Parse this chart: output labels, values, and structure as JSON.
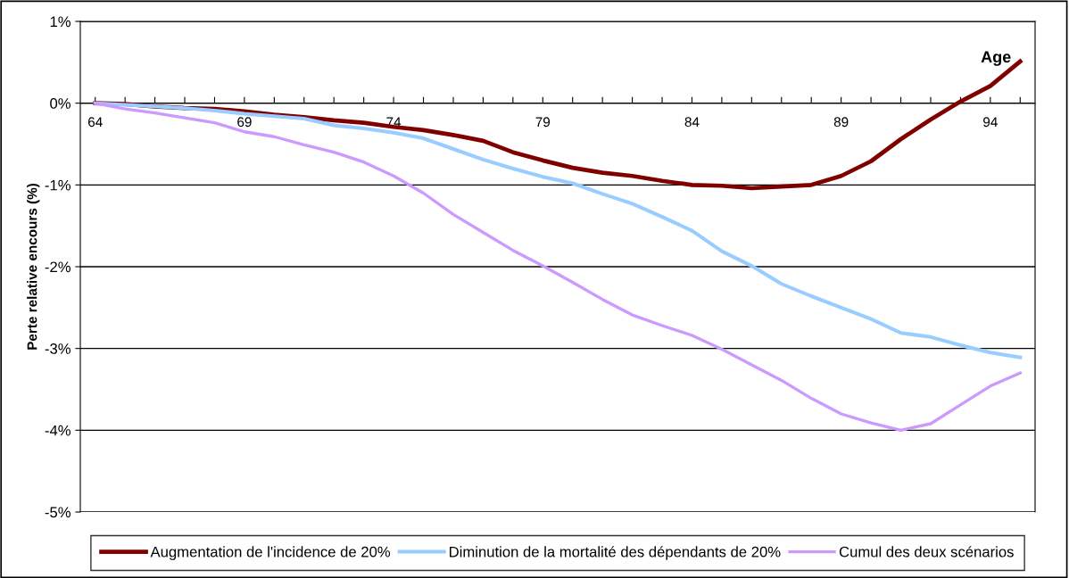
{
  "chart_data": {
    "type": "line",
    "xlabel": "Age",
    "ylabel": "Perte relative encours (%)",
    "categories": [
      "64",
      null,
      null,
      null,
      null,
      "69",
      null,
      null,
      null,
      null,
      "74",
      null,
      null,
      null,
      null,
      "79",
      null,
      null,
      null,
      null,
      "84",
      null,
      null,
      null,
      null,
      "89",
      null,
      null,
      null,
      null,
      "94",
      null
    ],
    "series": [
      {
        "name": "Augmentation de l'incidence de 20%",
        "color": "#800000",
        "values": [
          0,
          -0.01,
          -0.04,
          -0.06,
          -0.07,
          -0.1,
          -0.14,
          -0.17,
          -0.21,
          -0.24,
          -0.29,
          -0.33,
          -0.39,
          -0.46,
          -0.6,
          -0.7,
          -0.79,
          -0.85,
          -0.89,
          -0.95,
          -1.0,
          -1.01,
          -1.04,
          -1.02,
          -1.0,
          -0.89,
          -0.71,
          -0.44,
          -0.2,
          0.02,
          0.21,
          0.51
        ]
      },
      {
        "name": "Diminution de la mortalité des dépendants de 20%",
        "color": "#99ccff",
        "values": [
          0,
          -0.02,
          -0.04,
          -0.06,
          -0.09,
          -0.13,
          -0.16,
          -0.19,
          -0.27,
          -0.31,
          -0.36,
          -0.43,
          -0.56,
          -0.69,
          -0.8,
          -0.9,
          -0.98,
          -1.11,
          -1.23,
          -1.39,
          -1.56,
          -1.81,
          -1.99,
          -2.21,
          -2.36,
          -2.5,
          -2.64,
          -2.81,
          -2.86,
          -2.96,
          -3.05,
          -3.11
        ]
      },
      {
        "name": "Cumul des deux scénarios",
        "color": "#cc99ff",
        "values": [
          0,
          -0.07,
          -0.12,
          -0.18,
          -0.24,
          -0.35,
          -0.41,
          -0.51,
          -0.6,
          -0.72,
          -0.89,
          -1.1,
          -1.36,
          -1.58,
          -1.8,
          -1.99,
          -2.19,
          -2.4,
          -2.59,
          -2.72,
          -2.84,
          -3.01,
          -3.2,
          -3.39,
          -3.61,
          -3.8,
          -3.91,
          -4.0,
          -3.92,
          -3.69,
          -3.46,
          -3.3
        ]
      }
    ],
    "ylim": [
      -5,
      1
    ],
    "yticks": [
      {
        "value": -5,
        "label": "-5%"
      },
      {
        "value": -4,
        "label": "-4%"
      },
      {
        "value": -3,
        "label": "-3%"
      },
      {
        "value": -2,
        "label": "-2%"
      },
      {
        "value": -1,
        "label": "-1%"
      },
      {
        "value": 0,
        "label": "0%"
      },
      {
        "value": 1,
        "label": "1%"
      }
    ],
    "grid": "y",
    "legend": "bottom",
    "marker": "none",
    "line_style": "solid"
  }
}
